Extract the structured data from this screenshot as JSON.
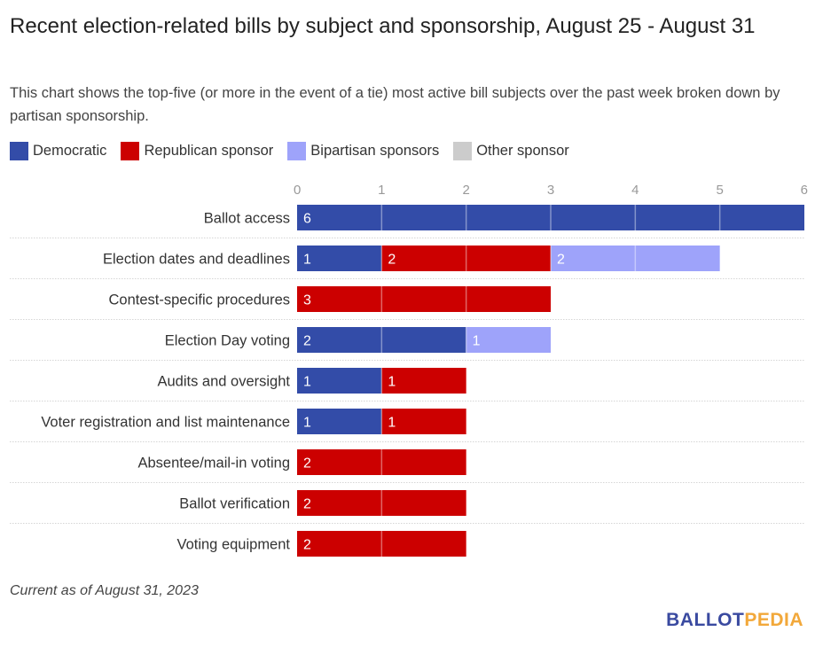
{
  "chart_data": {
    "type": "bar",
    "orientation": "horizontal",
    "stacked": true,
    "title": "Recent election-related bills by subject and sponsorship, August 25 - August 31",
    "subtitle": "This chart shows the top-five (or more in the event of a tie) most active bill subjects over the past week broken down by partisan sponsorship.",
    "xlabel": "",
    "ylabel": "",
    "xlim": [
      0,
      6
    ],
    "xticks": [
      0,
      1,
      2,
      3,
      4,
      5,
      6
    ],
    "grid": true,
    "legend_position": "top-left",
    "categories": [
      "Ballot access",
      "Election dates and deadlines",
      "Contest-specific procedures",
      "Election Day voting",
      "Audits and oversight",
      "Voter registration and list maintenance",
      "Absentee/mail-in voting",
      "Ballot verification",
      "Voting equipment"
    ],
    "series": [
      {
        "name": "Democratic",
        "color": "#334ca8",
        "values": [
          6,
          1,
          0,
          2,
          1,
          1,
          0,
          0,
          0
        ]
      },
      {
        "name": "Republican sponsor",
        "color": "#cc0000",
        "values": [
          0,
          2,
          3,
          0,
          1,
          1,
          2,
          2,
          2
        ]
      },
      {
        "name": "Bipartisan sponsors",
        "color": "#9ea3fa",
        "values": [
          0,
          2,
          0,
          1,
          0,
          0,
          0,
          0,
          0
        ]
      },
      {
        "name": "Other sponsor",
        "color": "#cccccc",
        "values": [
          0,
          0,
          0,
          0,
          0,
          0,
          0,
          0,
          0
        ]
      }
    ]
  },
  "footnote": "Current as of August 31, 2023",
  "logo": {
    "part1": "BALLOT",
    "part2": "PEDIA"
  }
}
